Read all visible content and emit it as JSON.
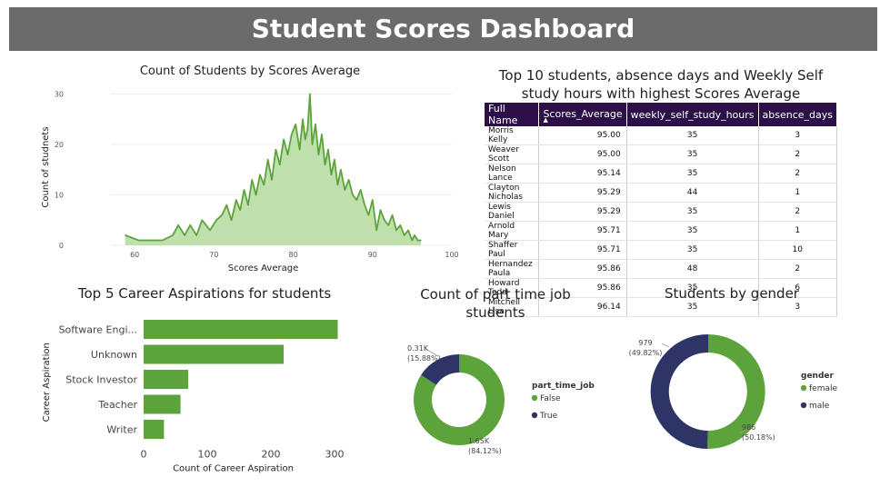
{
  "header": {
    "title": "Student Scores Dashboard"
  },
  "colors": {
    "green": "#5ba33a",
    "green_fill": "#bfe0ad",
    "navy": "#2e3566",
    "table_header": "#2d0f47",
    "title_bar": "#6b6b6b"
  },
  "chart_data": [
    {
      "type": "area",
      "title": "Count of Students by Scores Average",
      "xlabel": "Scores Average",
      "ylabel": "Count of studnets",
      "xlim": [
        57,
        100
      ],
      "ylim": [
        0,
        31
      ],
      "xticks": [
        60,
        70,
        80,
        90,
        100
      ],
      "yticks": [
        0,
        10,
        20,
        30
      ],
      "x": [
        58.8,
        60.5,
        62,
        63.5,
        64.8,
        65.5,
        66.3,
        67,
        67.8,
        68.5,
        69,
        69.5,
        70.3,
        71,
        71.6,
        72.2,
        72.8,
        73.3,
        73.8,
        74.3,
        74.8,
        75.3,
        75.8,
        76.3,
        76.8,
        77.3,
        77.8,
        78.3,
        78.8,
        79.3,
        79.8,
        80.3,
        80.8,
        81.2,
        81.5,
        81.8,
        82.1,
        82.4,
        82.8,
        83.2,
        83.6,
        84,
        84.4,
        84.8,
        85.2,
        85.6,
        86,
        86.5,
        87,
        87.5,
        88,
        88.5,
        89,
        89.5,
        90,
        90.5,
        91,
        91.5,
        92,
        92.5,
        93,
        93.5,
        94,
        94.5,
        95,
        95.3,
        95.7,
        96.1
      ],
      "values": [
        2,
        1,
        1,
        1,
        2,
        4,
        2,
        4,
        2,
        5,
        4,
        3,
        5,
        6,
        8,
        5,
        9,
        7,
        11,
        8,
        13,
        10,
        14,
        12,
        17,
        13,
        19,
        16,
        21,
        18,
        22,
        24,
        19,
        25,
        21,
        23,
        30,
        20,
        24,
        18,
        22,
        16,
        19,
        14,
        17,
        12,
        15,
        11,
        13,
        10,
        9,
        11,
        8,
        6,
        9,
        3,
        7,
        5,
        4,
        6,
        3,
        4,
        2,
        3,
        1,
        2,
        1,
        1
      ]
    },
    {
      "type": "table",
      "title": "Top 10 students, absence days and Weekly Self study hours with highest Scores Average",
      "columns": [
        "Full Name",
        "Scores_Average",
        "weekly_self_study_hours",
        "absence_days"
      ],
      "rows": [
        [
          "Morris Kelly",
          "95.00",
          "35",
          "3"
        ],
        [
          "Weaver Scott",
          "95.00",
          "35",
          "2"
        ],
        [
          "Nelson Lance",
          "95.14",
          "35",
          "2"
        ],
        [
          "Clayton Nicholas",
          "95.29",
          "44",
          "1"
        ],
        [
          "Lewis Daniel",
          "95.29",
          "35",
          "2"
        ],
        [
          "Arnold Mary",
          "95.71",
          "35",
          "1"
        ],
        [
          "Shaffer Paul",
          "95.71",
          "35",
          "10"
        ],
        [
          "Hernandez Paula",
          "95.86",
          "48",
          "2"
        ],
        [
          "Howard Todd",
          "95.86",
          "35",
          "6"
        ],
        [
          "Mitchell Lisa",
          "96.14",
          "35",
          "3"
        ]
      ]
    },
    {
      "type": "bar",
      "orientation": "horizontal",
      "title": "Top 5 Career Aspirations for students",
      "xlabel": "Count of Career Aspiration",
      "ylabel": "Career Aspiration",
      "categories": [
        "Software Engi...",
        "Unknown",
        "Stock Investor",
        "Teacher",
        "Writer"
      ],
      "values": [
        305,
        220,
        70,
        58,
        32
      ],
      "xlim": [
        0,
        310
      ],
      "xticks": [
        0,
        100,
        200,
        300
      ]
    },
    {
      "type": "pie",
      "donut": true,
      "title": "Count of part time job students",
      "legend_title": "part_time_job",
      "categories": [
        "False",
        "True"
      ],
      "values": [
        1650,
        310
      ],
      "percent": [
        84.12,
        15.88
      ],
      "value_labels": [
        "1.65K",
        "0.31K"
      ],
      "percent_labels": [
        "(84.12%)",
        "(15.88%)"
      ],
      "colors": [
        "#5ba33a",
        "#2e3566"
      ]
    },
    {
      "type": "pie",
      "donut": true,
      "title": "Students by gender",
      "legend_title": "gender",
      "categories": [
        "female",
        "male"
      ],
      "values": [
        986,
        979
      ],
      "percent": [
        50.18,
        49.82
      ],
      "value_labels": [
        "986",
        "979"
      ],
      "percent_labels": [
        "(50.18%)",
        "(49.82%)"
      ],
      "colors": [
        "#5ba33a",
        "#2e3566"
      ]
    }
  ]
}
